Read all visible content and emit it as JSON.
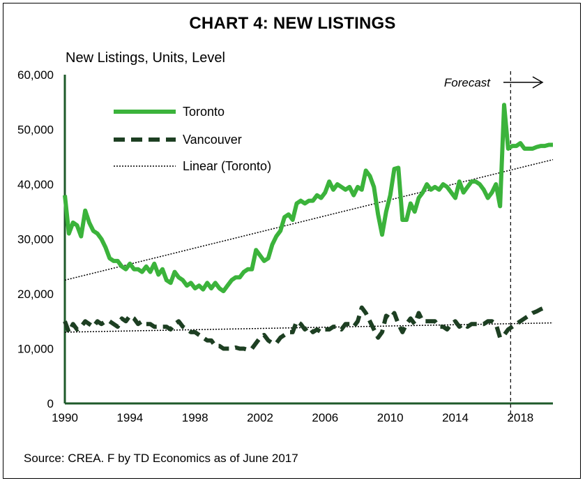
{
  "chart_data": {
    "type": "line",
    "title": "CHART 4: NEW LISTINGS",
    "ylabel": "New Listings, Units, Level",
    "source": "Source: CREA. F by TD Economics as of June 2017",
    "forecast_label": "Forecast",
    "forecast_start": 2017.4,
    "xlim": [
      1990,
      2020
    ],
    "ylim": [
      0,
      60000
    ],
    "xticks": [
      1990,
      1994,
      1998,
      2002,
      2006,
      2010,
      2014,
      2018
    ],
    "yticks": [
      0,
      10000,
      20000,
      30000,
      40000,
      50000,
      60000
    ],
    "ytick_labels": [
      "0",
      "10,000",
      "20,000",
      "30,000",
      "40,000",
      "50,000",
      "60,000"
    ],
    "legend": [
      "Toronto",
      "Vancouver",
      "Linear (Toronto)"
    ],
    "colors": {
      "toronto": "#3bb33b",
      "vancouver": "#1d3f22",
      "trend": "#000000",
      "axis": "#1e5a2a"
    },
    "series": [
      {
        "name": "Toronto",
        "style": "solid",
        "points": [
          [
            1990.0,
            38000
          ],
          [
            1990.25,
            31000
          ],
          [
            1990.5,
            33000
          ],
          [
            1990.75,
            32500
          ],
          [
            1991.0,
            30500
          ],
          [
            1991.25,
            35200
          ],
          [
            1991.5,
            33000
          ],
          [
            1991.75,
            31500
          ],
          [
            1992.0,
            31000
          ],
          [
            1992.25,
            30000
          ],
          [
            1992.5,
            28500
          ],
          [
            1992.75,
            26500
          ],
          [
            1993.0,
            26000
          ],
          [
            1993.25,
            26000
          ],
          [
            1993.5,
            25000
          ],
          [
            1993.75,
            24500
          ],
          [
            1994.0,
            25500
          ],
          [
            1994.25,
            24500
          ],
          [
            1994.5,
            24500
          ],
          [
            1994.75,
            24000
          ],
          [
            1995.0,
            25000
          ],
          [
            1995.25,
            24000
          ],
          [
            1995.5,
            25500
          ],
          [
            1995.75,
            23500
          ],
          [
            1996.0,
            24500
          ],
          [
            1996.25,
            22500
          ],
          [
            1996.5,
            22000
          ],
          [
            1996.75,
            24000
          ],
          [
            1997.0,
            23000
          ],
          [
            1997.25,
            22500
          ],
          [
            1997.5,
            21500
          ],
          [
            1997.75,
            22000
          ],
          [
            1998.0,
            21000
          ],
          [
            1998.25,
            21500
          ],
          [
            1998.5,
            20800
          ],
          [
            1998.75,
            22000
          ],
          [
            1999.0,
            21000
          ],
          [
            1999.25,
            22000
          ],
          [
            1999.5,
            21000
          ],
          [
            1999.75,
            20500
          ],
          [
            2000.0,
            21500
          ],
          [
            2000.25,
            22500
          ],
          [
            2000.5,
            23000
          ],
          [
            2000.75,
            23000
          ],
          [
            2001.0,
            24000
          ],
          [
            2001.25,
            24500
          ],
          [
            2001.5,
            24500
          ],
          [
            2001.75,
            28000
          ],
          [
            2002.0,
            27000
          ],
          [
            2002.25,
            26000
          ],
          [
            2002.5,
            26500
          ],
          [
            2002.75,
            29000
          ],
          [
            2003.0,
            30500
          ],
          [
            2003.25,
            31500
          ],
          [
            2003.5,
            34000
          ],
          [
            2003.75,
            34500
          ],
          [
            2004.0,
            33500
          ],
          [
            2004.25,
            36500
          ],
          [
            2004.5,
            37000
          ],
          [
            2004.75,
            36500
          ],
          [
            2005.0,
            37000
          ],
          [
            2005.25,
            37000
          ],
          [
            2005.5,
            38000
          ],
          [
            2005.75,
            37500
          ],
          [
            2006.0,
            38500
          ],
          [
            2006.25,
            40500
          ],
          [
            2006.5,
            39000
          ],
          [
            2006.75,
            40000
          ],
          [
            2007.0,
            39500
          ],
          [
            2007.25,
            39000
          ],
          [
            2007.5,
            39500
          ],
          [
            2007.75,
            38000
          ],
          [
            2008.0,
            39500
          ],
          [
            2008.25,
            39000
          ],
          [
            2008.5,
            42500
          ],
          [
            2008.75,
            41500
          ],
          [
            2009.0,
            39500
          ],
          [
            2009.25,
            34500
          ],
          [
            2009.5,
            30800
          ],
          [
            2009.75,
            35000
          ],
          [
            2010.0,
            38000
          ],
          [
            2010.25,
            42800
          ],
          [
            2010.5,
            43000
          ],
          [
            2010.75,
            33500
          ],
          [
            2011.0,
            33500
          ],
          [
            2011.25,
            36500
          ],
          [
            2011.5,
            35000
          ],
          [
            2011.75,
            37500
          ],
          [
            2012.0,
            38500
          ],
          [
            2012.25,
            40000
          ],
          [
            2012.5,
            39000
          ],
          [
            2012.75,
            39500
          ],
          [
            2013.0,
            39000
          ],
          [
            2013.25,
            40000
          ],
          [
            2013.5,
            39500
          ],
          [
            2013.75,
            38500
          ],
          [
            2014.0,
            37500
          ],
          [
            2014.25,
            40500
          ],
          [
            2014.5,
            38500
          ],
          [
            2014.75,
            39500
          ],
          [
            2015.0,
            40500
          ],
          [
            2015.25,
            40500
          ],
          [
            2015.5,
            40000
          ],
          [
            2015.75,
            39000
          ],
          [
            2016.0,
            37500
          ],
          [
            2016.25,
            38500
          ],
          [
            2016.5,
            40000
          ],
          [
            2016.75,
            36000
          ],
          [
            2017.0,
            54500
          ],
          [
            2017.25,
            46500
          ],
          [
            2017.5,
            47000
          ],
          [
            2017.75,
            47000
          ],
          [
            2018.0,
            47500
          ],
          [
            2018.25,
            46500
          ],
          [
            2018.5,
            46500
          ],
          [
            2018.75,
            46500
          ],
          [
            2019.0,
            46800
          ],
          [
            2019.25,
            47000
          ],
          [
            2019.5,
            47000
          ],
          [
            2019.75,
            47200
          ],
          [
            2020.0,
            47200
          ]
        ]
      },
      {
        "name": "Vancouver",
        "style": "dashed",
        "points": [
          [
            1990.0,
            15000
          ],
          [
            1990.25,
            13000
          ],
          [
            1990.5,
            14500
          ],
          [
            1990.75,
            13500
          ],
          [
            1991.0,
            14000
          ],
          [
            1991.25,
            15000
          ],
          [
            1991.5,
            14500
          ],
          [
            1991.75,
            14000
          ],
          [
            1992.0,
            15000
          ],
          [
            1992.25,
            14500
          ],
          [
            1992.5,
            15000
          ],
          [
            1992.75,
            15000
          ],
          [
            1993.0,
            14500
          ],
          [
            1993.25,
            14000
          ],
          [
            1993.5,
            15500
          ],
          [
            1993.75,
            15000
          ],
          [
            1994.0,
            16000
          ],
          [
            1994.25,
            15500
          ],
          [
            1994.5,
            14500
          ],
          [
            1994.75,
            15000
          ],
          [
            1995.0,
            14500
          ],
          [
            1995.25,
            14500
          ],
          [
            1995.5,
            14000
          ],
          [
            1995.75,
            14000
          ],
          [
            1996.0,
            14000
          ],
          [
            1996.25,
            14000
          ],
          [
            1996.5,
            13500
          ],
          [
            1996.75,
            14500
          ],
          [
            1997.0,
            15000
          ],
          [
            1997.25,
            14000
          ],
          [
            1997.5,
            13500
          ],
          [
            1997.75,
            13000
          ],
          [
            1998.0,
            13000
          ],
          [
            1998.25,
            12500
          ],
          [
            1998.5,
            12000
          ],
          [
            1998.75,
            11500
          ],
          [
            1999.0,
            11500
          ],
          [
            1999.25,
            10500
          ],
          [
            1999.5,
            10500
          ],
          [
            1999.75,
            10000
          ],
          [
            2000.0,
            10000
          ],
          [
            2000.25,
            10000
          ],
          [
            2000.5,
            10200
          ],
          [
            2000.75,
            10000
          ],
          [
            2001.0,
            10000
          ],
          [
            2001.25,
            9800
          ],
          [
            2001.5,
            10000
          ],
          [
            2001.75,
            11000
          ],
          [
            2002.0,
            12000
          ],
          [
            2002.25,
            12500
          ],
          [
            2002.5,
            11500
          ],
          [
            2002.75,
            11000
          ],
          [
            2003.0,
            11000
          ],
          [
            2003.25,
            12000
          ],
          [
            2003.5,
            12500
          ],
          [
            2003.75,
            13000
          ],
          [
            2004.0,
            13000
          ],
          [
            2004.25,
            15000
          ],
          [
            2004.5,
            14500
          ],
          [
            2004.75,
            13500
          ],
          [
            2005.0,
            14000
          ],
          [
            2005.25,
            13000
          ],
          [
            2005.5,
            13500
          ],
          [
            2005.75,
            13000
          ],
          [
            2006.0,
            13500
          ],
          [
            2006.25,
            13500
          ],
          [
            2006.5,
            14000
          ],
          [
            2006.75,
            14000
          ],
          [
            2007.0,
            13500
          ],
          [
            2007.25,
            14500
          ],
          [
            2007.5,
            14500
          ],
          [
            2007.75,
            14000
          ],
          [
            2008.0,
            15000
          ],
          [
            2008.25,
            17500
          ],
          [
            2008.5,
            16500
          ],
          [
            2008.75,
            15000
          ],
          [
            2009.0,
            13500
          ],
          [
            2009.25,
            12000
          ],
          [
            2009.5,
            13000
          ],
          [
            2009.75,
            16000
          ],
          [
            2010.0,
            15500
          ],
          [
            2010.25,
            16500
          ],
          [
            2010.5,
            14500
          ],
          [
            2010.75,
            13000
          ],
          [
            2011.0,
            14500
          ],
          [
            2011.25,
            15500
          ],
          [
            2011.5,
            14500
          ],
          [
            2011.75,
            16500
          ],
          [
            2012.0,
            15000
          ],
          [
            2012.25,
            15000
          ],
          [
            2012.5,
            15000
          ],
          [
            2012.75,
            15000
          ],
          [
            2013.0,
            14000
          ],
          [
            2013.25,
            14000
          ],
          [
            2013.5,
            13500
          ],
          [
            2013.75,
            14500
          ],
          [
            2014.0,
            15000
          ],
          [
            2014.25,
            14000
          ],
          [
            2014.5,
            14500
          ],
          [
            2014.75,
            14000
          ],
          [
            2015.0,
            14500
          ],
          [
            2015.25,
            14500
          ],
          [
            2015.5,
            14500
          ],
          [
            2015.75,
            14500
          ],
          [
            2016.0,
            15000
          ],
          [
            2016.25,
            15000
          ],
          [
            2016.5,
            14500
          ],
          [
            2016.75,
            12000
          ],
          [
            2017.0,
            12500
          ],
          [
            2017.25,
            13500
          ],
          [
            2017.5,
            14000
          ],
          [
            2017.75,
            14500
          ],
          [
            2018.0,
            15000
          ],
          [
            2018.25,
            15500
          ],
          [
            2018.5,
            16000
          ],
          [
            2018.75,
            16500
          ],
          [
            2019.0,
            16800
          ],
          [
            2019.25,
            17200
          ],
          [
            2019.5,
            17500
          ]
        ]
      },
      {
        "name": "Linear (Toronto)",
        "style": "dotted",
        "points": [
          [
            1990,
            22500
          ],
          [
            2020,
            44500
          ]
        ]
      },
      {
        "name": "Linear (Vancouver)",
        "style": "dotted",
        "points": [
          [
            1990,
            13000
          ],
          [
            2020,
            14700
          ]
        ]
      }
    ]
  }
}
